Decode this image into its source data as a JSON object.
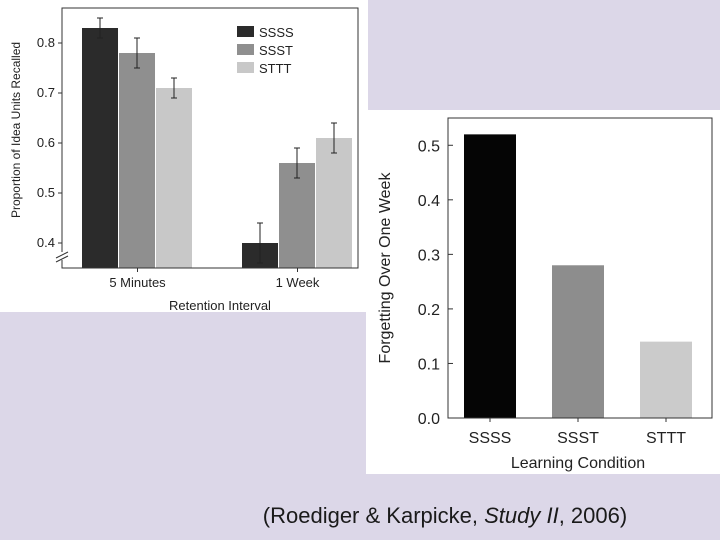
{
  "citation": {
    "prefix": "(Roediger & Karpicke, ",
    "title": "Study II",
    "suffix": ", 2006)"
  },
  "chart_data": [
    {
      "type": "bar",
      "title": "",
      "xlabel": "Retention Interval",
      "ylabel": "Proportion of Idea Units Recalled",
      "categories": [
        "5 Minutes",
        "1 Week"
      ],
      "series": [
        {
          "name": "SSSS",
          "values": [
            0.83,
            0.4
          ],
          "errors": [
            0.02,
            0.04
          ],
          "color": "#2b2b2b"
        },
        {
          "name": "SSST",
          "values": [
            0.78,
            0.56
          ],
          "errors": [
            0.03,
            0.03
          ],
          "color": "#8f8f8f"
        },
        {
          "name": "STTT",
          "values": [
            0.71,
            0.61
          ],
          "errors": [
            0.02,
            0.03
          ],
          "color": "#c8c8c8"
        }
      ],
      "ylim": [
        0.35,
        0.87
      ],
      "yticks": [
        "0.4",
        "0.5",
        "0.6",
        "0.7",
        "0.8"
      ],
      "axis_break": true,
      "legend": "top-right"
    },
    {
      "type": "bar",
      "title": "",
      "xlabel": "Learning Condition",
      "ylabel": "Forgetting Over One Week",
      "categories": [
        "SSSS",
        "SSST",
        "STTT"
      ],
      "values": [
        0.52,
        0.28,
        0.14
      ],
      "colors": [
        "#050505",
        "#8d8d8d",
        "#cbcbcb"
      ],
      "ylim": [
        0,
        0.55
      ],
      "yticks": [
        "0.0",
        "0.1",
        "0.2",
        "0.3",
        "0.4",
        "0.5"
      ],
      "legend": "none"
    }
  ]
}
